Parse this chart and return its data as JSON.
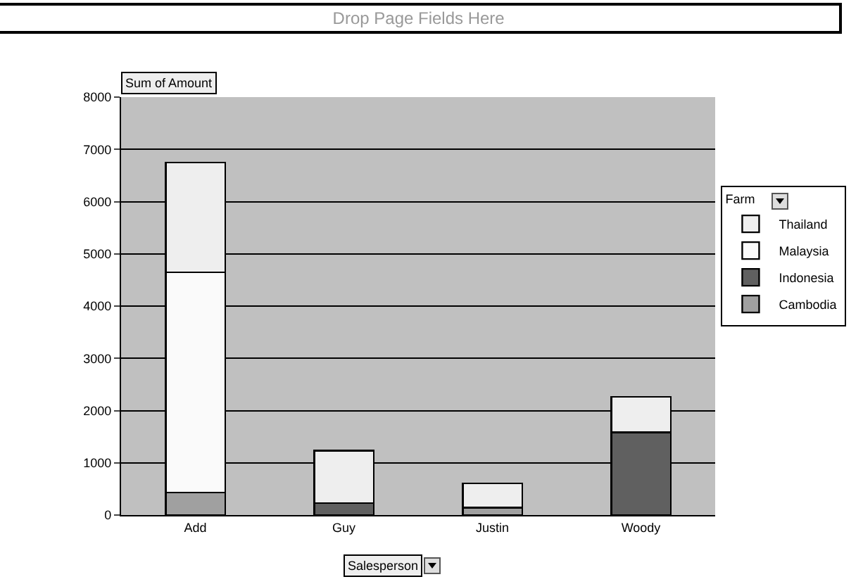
{
  "chart_data": {
    "type": "bar",
    "title": "Drop Page Fields Here",
    "ylabel": "Sum of Amount",
    "xlabel": "Salesperson",
    "legend_title": "Farm",
    "categories": [
      "Add",
      "Guy",
      "Justin",
      "Woody"
    ],
    "stacked": true,
    "series": [
      {
        "name": "Cambodia",
        "color": "#a0a0a0",
        "values": [
          430,
          null,
          140,
          null
        ]
      },
      {
        "name": "Indonesia",
        "color": "#606060",
        "values": [
          null,
          230,
          null,
          1580
        ]
      },
      {
        "name": "Malaysia",
        "color": "#fafafa",
        "values": [
          4220,
          null,
          null,
          null
        ]
      },
      {
        "name": "Thailand",
        "color": "#eeeeee",
        "values": [
          2100,
          1000,
          470,
          680
        ]
      }
    ],
    "ylim": [
      0,
      8000
    ],
    "yticks": [
      0,
      1000,
      2000,
      3000,
      4000,
      5000,
      6000,
      7000,
      8000
    ],
    "grid": "y",
    "legend": "right"
  }
}
